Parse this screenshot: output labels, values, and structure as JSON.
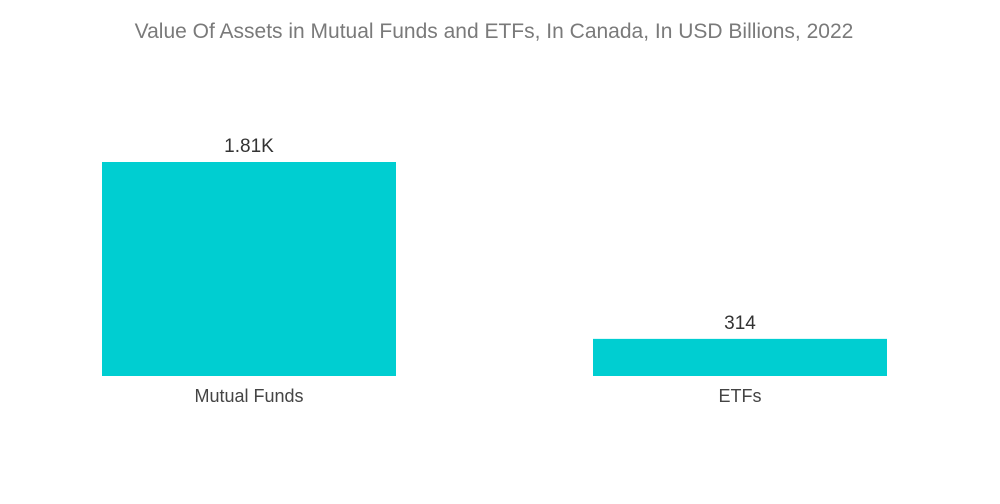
{
  "chart_data": {
    "type": "bar",
    "title": "Value Of Assets in Mutual Funds and ETFs, In Canada, In USD Billions, 2022",
    "categories": [
      "Mutual Funds",
      "ETFs"
    ],
    "values": [
      1810,
      314
    ],
    "value_labels": [
      "1.81K",
      "314"
    ],
    "xlabel": "",
    "ylabel": "",
    "ylim": [
      0,
      1810
    ],
    "grid": false,
    "legend": "none",
    "bar_color": "#00CED1"
  }
}
